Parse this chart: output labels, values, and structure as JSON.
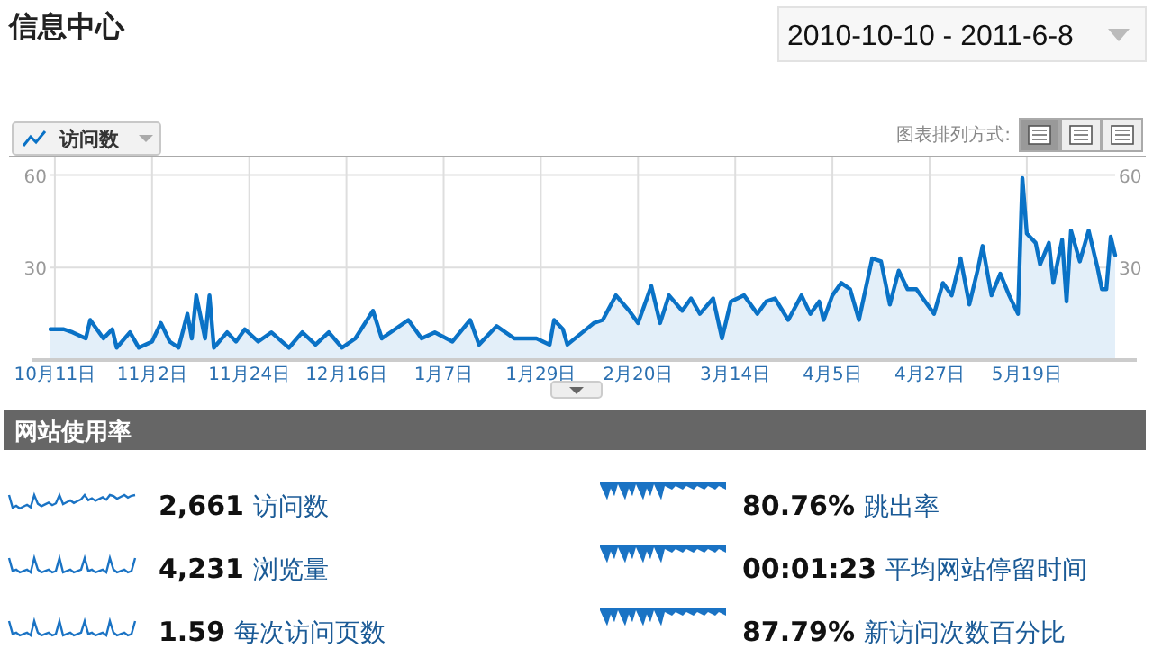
{
  "chart_data": [
    {
      "type": "area",
      "title": "信息中心",
      "subtitle": "2010-10-10 - 2011-6-8",
      "legend": "top left",
      "grid": true,
      "xlim": [
        "2010-10-10",
        "2011-06-08"
      ],
      "xticks": [
        {
          "value": "2010-10-11",
          "label": "10月11日"
        },
        {
          "value": "2010-11-02",
          "label": "11月2日"
        },
        {
          "value": "2010-11-24",
          "label": "11月24日"
        },
        {
          "value": "2010-12-16",
          "label": "12月16日"
        },
        {
          "value": "2011-01-07",
          "label": "1月7日"
        },
        {
          "value": "2011-01-29",
          "label": "1月29日"
        },
        {
          "value": "2011-02-20",
          "label": "2月20日"
        },
        {
          "value": "2011-03-14",
          "label": "3月14日"
        },
        {
          "value": "2011-04-05",
          "label": "4月5日"
        },
        {
          "value": "2011-04-27",
          "label": "4月27日"
        },
        {
          "value": "2011-05-19",
          "label": "5月19日"
        }
      ],
      "ylim": [
        0,
        66
      ],
      "yticks": [
        30,
        60
      ],
      "y2lim": [
        0,
        66
      ],
      "y2ticks": [
        30,
        60
      ],
      "annotations": [
        "图表排列方式:"
      ],
      "x": [
        "2010-10-10",
        "2010-10-13",
        "2010-10-15",
        "2010-10-18",
        "2010-10-19",
        "2010-10-22",
        "2010-10-24",
        "2010-10-25",
        "2010-10-28",
        "2010-10-30",
        "2010-11-02",
        "2010-11-04",
        "2010-11-06",
        "2010-11-08",
        "2010-11-10",
        "2010-11-11",
        "2010-11-12",
        "2010-11-14",
        "2010-11-15",
        "2010-11-16",
        "2010-11-19",
        "2010-11-21",
        "2010-11-23",
        "2010-11-26",
        "2010-11-29",
        "2010-12-03",
        "2010-12-06",
        "2010-12-09",
        "2010-12-12",
        "2010-12-15",
        "2010-12-18",
        "2010-12-22",
        "2010-12-24",
        "2010-12-27",
        "2010-12-30",
        "2011-01-02",
        "2011-01-05",
        "2011-01-09",
        "2011-01-13",
        "2011-01-15",
        "2011-01-19",
        "2011-01-23",
        "2011-01-28",
        "2011-01-31",
        "2011-02-01",
        "2011-02-03",
        "2011-02-04",
        "2011-02-10",
        "2011-02-12",
        "2011-02-15",
        "2011-02-18",
        "2011-02-20",
        "2011-02-23",
        "2011-02-25",
        "2011-02-27",
        "2011-03-02",
        "2011-03-04",
        "2011-03-06",
        "2011-03-09",
        "2011-03-11",
        "2011-03-13",
        "2011-03-16",
        "2011-03-19",
        "2011-03-21",
        "2011-03-23",
        "2011-03-26",
        "2011-03-29",
        "2011-03-31",
        "2011-04-02",
        "2011-04-03",
        "2011-04-05",
        "2011-04-07",
        "2011-04-09",
        "2011-04-11",
        "2011-04-14",
        "2011-04-16",
        "2011-04-18",
        "2011-04-20",
        "2011-04-22",
        "2011-04-24",
        "2011-04-26",
        "2011-04-28",
        "2011-04-30",
        "2011-05-02",
        "2011-05-04",
        "2011-05-06",
        "2011-05-08",
        "2011-05-09",
        "2011-05-11",
        "2011-05-13",
        "2011-05-15",
        "2011-05-17",
        "2011-05-18",
        "2011-05-19",
        "2011-05-21",
        "2011-05-22",
        "2011-05-24",
        "2011-05-25",
        "2011-05-27",
        "2011-05-28",
        "2011-05-29",
        "2011-05-31",
        "2011-06-02",
        "2011-06-04",
        "2011-06-05",
        "2011-06-06",
        "2011-06-07",
        "2011-06-08"
      ],
      "series": [
        {
          "name": "访问数",
          "color": "#0a72c6",
          "values": [
            10,
            10,
            9,
            7,
            13,
            7,
            10,
            4,
            9,
            4,
            6,
            12,
            6,
            4,
            15,
            7,
            21,
            7,
            21,
            4,
            9,
            6,
            10,
            6,
            9,
            4,
            9,
            5,
            9,
            4,
            7,
            16,
            7,
            10,
            13,
            7,
            9,
            6,
            13,
            5,
            11,
            7,
            7,
            5,
            13,
            10,
            5,
            12,
            13,
            21,
            16,
            12,
            24,
            12,
            21,
            16,
            20,
            15,
            20,
            7,
            19,
            21,
            15,
            19,
            20,
            13,
            21,
            15,
            19,
            13,
            21,
            25,
            23,
            13,
            33,
            32,
            18,
            29,
            23,
            23,
            19,
            15,
            25,
            21,
            33,
            18,
            30,
            37,
            21,
            28,
            21,
            15,
            59,
            41,
            38,
            31,
            38,
            25,
            39,
            19,
            42,
            32,
            42,
            30,
            23,
            23,
            40,
            34
          ]
        }
      ]
    },
    {
      "type": "other",
      "title": "网站使用率",
      "annotations": [
        "2,661 访问数",
        "4,231 浏览量",
        "1.59 每次访问页数",
        "80.76% 跳出率",
        "00:01:23 平均网站停留时间",
        "87.79% 新访问次数百分比"
      ]
    }
  ]
}
